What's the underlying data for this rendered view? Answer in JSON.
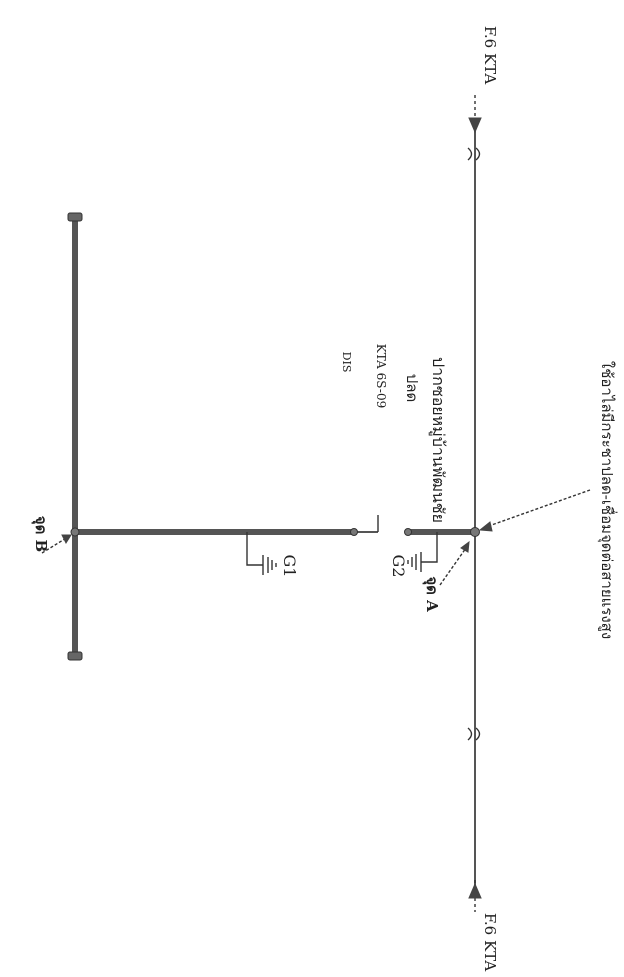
{
  "labels": {
    "feeder_top": "F.6 KTA",
    "feeder_bottom": "F.6 KTA",
    "point_b": "จุด B",
    "point_a": "จุด A",
    "switch_tag_line1": "DIS",
    "switch_tag_line2": "KTA 6S-09",
    "switch_tag_line3": "ปลด",
    "location_name": "ปากซอยหมู่บ้านพัฒนชัย",
    "ground_1": "G1",
    "ground_2": "G2",
    "note": "ใช้อาไล่มีกระชาปลด-เชื่อมจุดต่อสายแรงสูง"
  }
}
